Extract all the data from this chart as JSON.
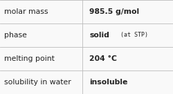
{
  "rows": [
    {
      "label": "molar mass",
      "value": "985.5 g/mol",
      "extra": null
    },
    {
      "label": "phase",
      "value": "solid",
      "extra": "(at STP)"
    },
    {
      "label": "melting point",
      "value": "204 °C",
      "extra": null
    },
    {
      "label": "solubility in water",
      "value": "insoluble",
      "extra": null
    }
  ],
  "col_split": 0.475,
  "background_color": "#f9f9f9",
  "border_color": "#bbbbbb",
  "label_fontsize": 7.8,
  "value_fontsize": 7.8,
  "extra_fontsize": 6.0,
  "text_color": "#222222",
  "font_family": "DejaVu Sans"
}
